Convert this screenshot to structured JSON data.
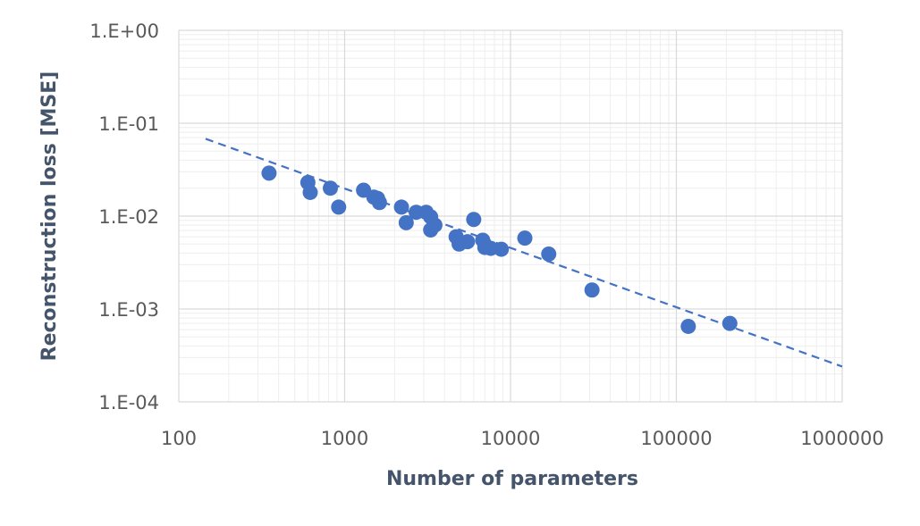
{
  "chart_data": {
    "type": "scatter",
    "title": "",
    "xlabel": "Number of parameters",
    "ylabel": "Reconstruction loss [MSE]",
    "x_scale": "log",
    "y_scale": "log",
    "xlim": [
      100,
      1000000
    ],
    "ylim": [
      0.0001,
      1
    ],
    "x_tick_labels": [
      "100",
      "1000",
      "10000",
      "100000",
      "1000000"
    ],
    "y_tick_labels": [
      "1.E+00",
      "1.E-01",
      "1.E-02",
      "1.E-03",
      "1.E-04"
    ],
    "grid": true,
    "legend": "none",
    "marker_color": "#4472c4",
    "series": [
      {
        "points": [
          {
            "x": 350,
            "y": 0.029
          },
          {
            "x": 600,
            "y": 0.023
          },
          {
            "x": 620,
            "y": 0.018
          },
          {
            "x": 820,
            "y": 0.02
          },
          {
            "x": 920,
            "y": 0.0125
          },
          {
            "x": 1300,
            "y": 0.019
          },
          {
            "x": 1500,
            "y": 0.016
          },
          {
            "x": 1620,
            "y": 0.014
          },
          {
            "x": 1580,
            "y": 0.0155
          },
          {
            "x": 2200,
            "y": 0.0125
          },
          {
            "x": 2350,
            "y": 0.0085
          },
          {
            "x": 2700,
            "y": 0.011
          },
          {
            "x": 3100,
            "y": 0.011
          },
          {
            "x": 3300,
            "y": 0.0098
          },
          {
            "x": 3300,
            "y": 0.0071
          },
          {
            "x": 3500,
            "y": 0.008
          },
          {
            "x": 4700,
            "y": 0.006
          },
          {
            "x": 4900,
            "y": 0.005
          },
          {
            "x": 5500,
            "y": 0.0053
          },
          {
            "x": 6000,
            "y": 0.0092
          },
          {
            "x": 6800,
            "y": 0.0055
          },
          {
            "x": 7000,
            "y": 0.0046
          },
          {
            "x": 7600,
            "y": 0.0045
          },
          {
            "x": 8800,
            "y": 0.0044
          },
          {
            "x": 12200,
            "y": 0.0058
          },
          {
            "x": 17000,
            "y": 0.0039
          },
          {
            "x": 31000,
            "y": 0.0016
          },
          {
            "x": 118000,
            "y": 0.00065
          },
          {
            "x": 210000,
            "y": 0.0007
          }
        ]
      }
    ],
    "trendline": {
      "type": "power",
      "style": "dashed",
      "x_range": [
        145,
        1000000
      ],
      "y_range": [
        0.068,
        0.00024
      ]
    }
  }
}
